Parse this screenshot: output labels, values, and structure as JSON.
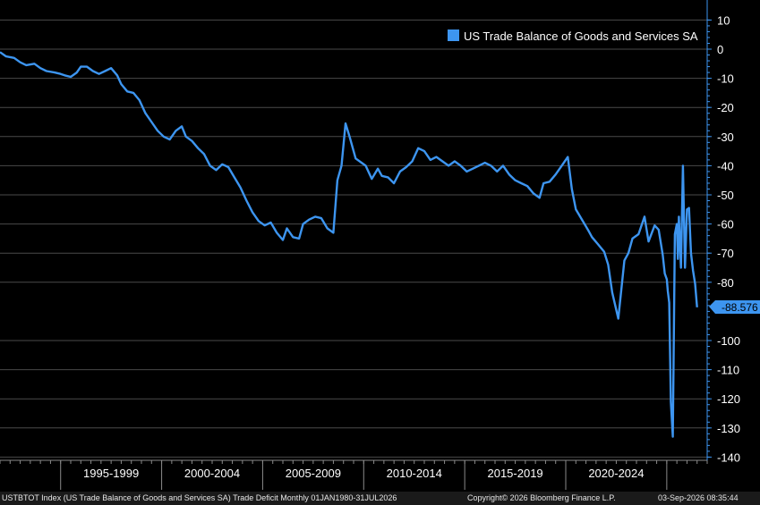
{
  "colors": {
    "background": "#000000",
    "series": "#3d95f0",
    "grid": "#4a4a4a",
    "axis": "#3d95f0"
  },
  "legend": {
    "label": "US Trade Balance of Goods and Services SA",
    "position": "top-right"
  },
  "last_value": {
    "label": "-88.576",
    "value": -88.576
  },
  "footer": {
    "left": "USTBTOT Index (US Trade Balance of Goods and Services SA) Trade Deficit Monthly 01JAN1980-31JUL2026",
    "center": "Copyright© 2026 Bloomberg Finance L.P.",
    "right": "03-Sep-2026 08:35:44"
  },
  "chart_data": {
    "type": "line",
    "title": "",
    "xlabel": "",
    "ylabel": "",
    "ylim": [
      -140,
      10
    ],
    "yticks": [
      10,
      0,
      -10,
      -20,
      -30,
      -40,
      -50,
      -60,
      -70,
      -80,
      -100,
      -110,
      -120,
      -130,
      -140
    ],
    "xlim": [
      1992.0,
      2027.0
    ],
    "xtick_labels": [
      {
        "label": "1995-1999",
        "x": 1997.5
      },
      {
        "label": "2000-2004",
        "x": 2002.5
      },
      {
        "label": "2005-2009",
        "x": 2007.5
      },
      {
        "label": "2010-2014",
        "x": 2012.5
      },
      {
        "label": "2015-2019",
        "x": 2017.5
      },
      {
        "label": "2020-2024",
        "x": 2022.5
      }
    ],
    "x_period_boundaries": [
      1995,
      2000,
      2005,
      2010,
      2015,
      2020,
      2025
    ],
    "grid": true,
    "series": [
      {
        "name": "US Trade Balance of Goods and Services SA",
        "x": [
          1992.0,
          1992.3,
          1992.7,
          1993.0,
          1993.3,
          1993.7,
          1994.0,
          1994.3,
          1994.7,
          1995.0,
          1995.2,
          1995.5,
          1995.8,
          1996.0,
          1996.3,
          1996.6,
          1996.9,
          1997.2,
          1997.5,
          1997.8,
          1998.0,
          1998.3,
          1998.6,
          1998.9,
          1999.2,
          1999.5,
          1999.8,
          2000.1,
          2000.4,
          2000.7,
          2001.0,
          2001.2,
          2001.5,
          2001.8,
          2002.1,
          2002.4,
          2002.7,
          2003.0,
          2003.3,
          2003.6,
          2003.9,
          2004.2,
          2004.5,
          2004.8,
          2005.1,
          2005.4,
          2005.7,
          2006.0,
          2006.2,
          2006.5,
          2006.8,
          2007.0,
          2007.3,
          2007.6,
          2007.9,
          2008.2,
          2008.5,
          2008.7,
          2008.9,
          2009.1,
          2009.3,
          2009.6,
          2009.9,
          2010.1,
          2010.4,
          2010.7,
          2010.9,
          2011.2,
          2011.5,
          2011.8,
          2012.1,
          2012.4,
          2012.7,
          2013.0,
          2013.3,
          2013.6,
          2013.9,
          2014.2,
          2014.5,
          2014.8,
          2015.1,
          2015.4,
          2015.7,
          2016.0,
          2016.3,
          2016.6,
          2016.9,
          2017.2,
          2017.5,
          2017.8,
          2018.1,
          2018.4,
          2018.7,
          2018.9,
          2019.2,
          2019.5,
          2019.8,
          2020.1,
          2020.3,
          2020.5,
          2020.8,
          2021.1,
          2021.3,
          2021.6,
          2021.9,
          2022.1,
          2022.3,
          2022.6,
          2022.9,
          2023.1,
          2023.3,
          2023.6,
          2023.9,
          2024.1,
          2024.4,
          2024.6,
          2024.8,
          2024.9,
          2025.0,
          2025.05,
          2025.12,
          2025.2,
          2025.3,
          2025.4,
          2025.5,
          2025.55,
          2025.6,
          2025.7,
          2025.8,
          2025.9,
          2026.0,
          2026.1,
          2026.2,
          2026.3,
          2026.4,
          2026.5
        ],
        "y": [
          -1.0,
          -2.5,
          -3.0,
          -4.5,
          -5.5,
          -5.0,
          -6.5,
          -7.5,
          -8.0,
          -8.5,
          -9.0,
          -9.5,
          -8.0,
          -6.0,
          -6.0,
          -7.5,
          -8.5,
          -7.5,
          -6.5,
          -9.0,
          -12.0,
          -14.5,
          -15.0,
          -17.5,
          -22.0,
          -25.0,
          -28.0,
          -30.0,
          -31.0,
          -28.0,
          -26.5,
          -30.0,
          -31.5,
          -34.0,
          -36.0,
          -40.0,
          -41.5,
          -39.5,
          -40.5,
          -44.0,
          -47.5,
          -52.0,
          -56.0,
          -59.0,
          -60.5,
          -59.5,
          -63.0,
          -65.5,
          -61.5,
          -64.5,
          -65.0,
          -60.0,
          -58.5,
          -57.5,
          -58.0,
          -61.5,
          -63.0,
          -45.0,
          -40.0,
          -25.5,
          -30.0,
          -37.5,
          -39.0,
          -40.0,
          -44.5,
          -41.0,
          -43.5,
          -44.0,
          -46.0,
          -42.0,
          -40.5,
          -38.5,
          -34.0,
          -35.0,
          -38.0,
          -37.0,
          -38.5,
          -40.0,
          -38.5,
          -40.0,
          -42.0,
          -41.0,
          -40.0,
          -39.0,
          -40.0,
          -42.0,
          -40.0,
          -43.0,
          -45.0,
          -46.0,
          -47.0,
          -49.5,
          -51.0,
          -46.0,
          -45.5,
          -43.0,
          -40.0,
          -37.0,
          -48.0,
          -55.0,
          -58.5,
          -62.0,
          -64.5,
          -67.0,
          -69.5,
          -74.0,
          -83.5,
          -92.5,
          -72.5,
          -70.0,
          -65.0,
          -63.5,
          -57.5,
          -66.0,
          -60.5,
          -62.0,
          -70.5,
          -77.0,
          -79.0,
          -83.0,
          -87.0,
          -121.0,
          -133.0,
          -63.5,
          -60.0,
          -72.0,
          -57.5,
          -75.0,
          -40.0,
          -75.0,
          -55.0,
          -54.5,
          -70.0,
          -76.0,
          -80.5,
          -88.576
        ]
      }
    ]
  }
}
